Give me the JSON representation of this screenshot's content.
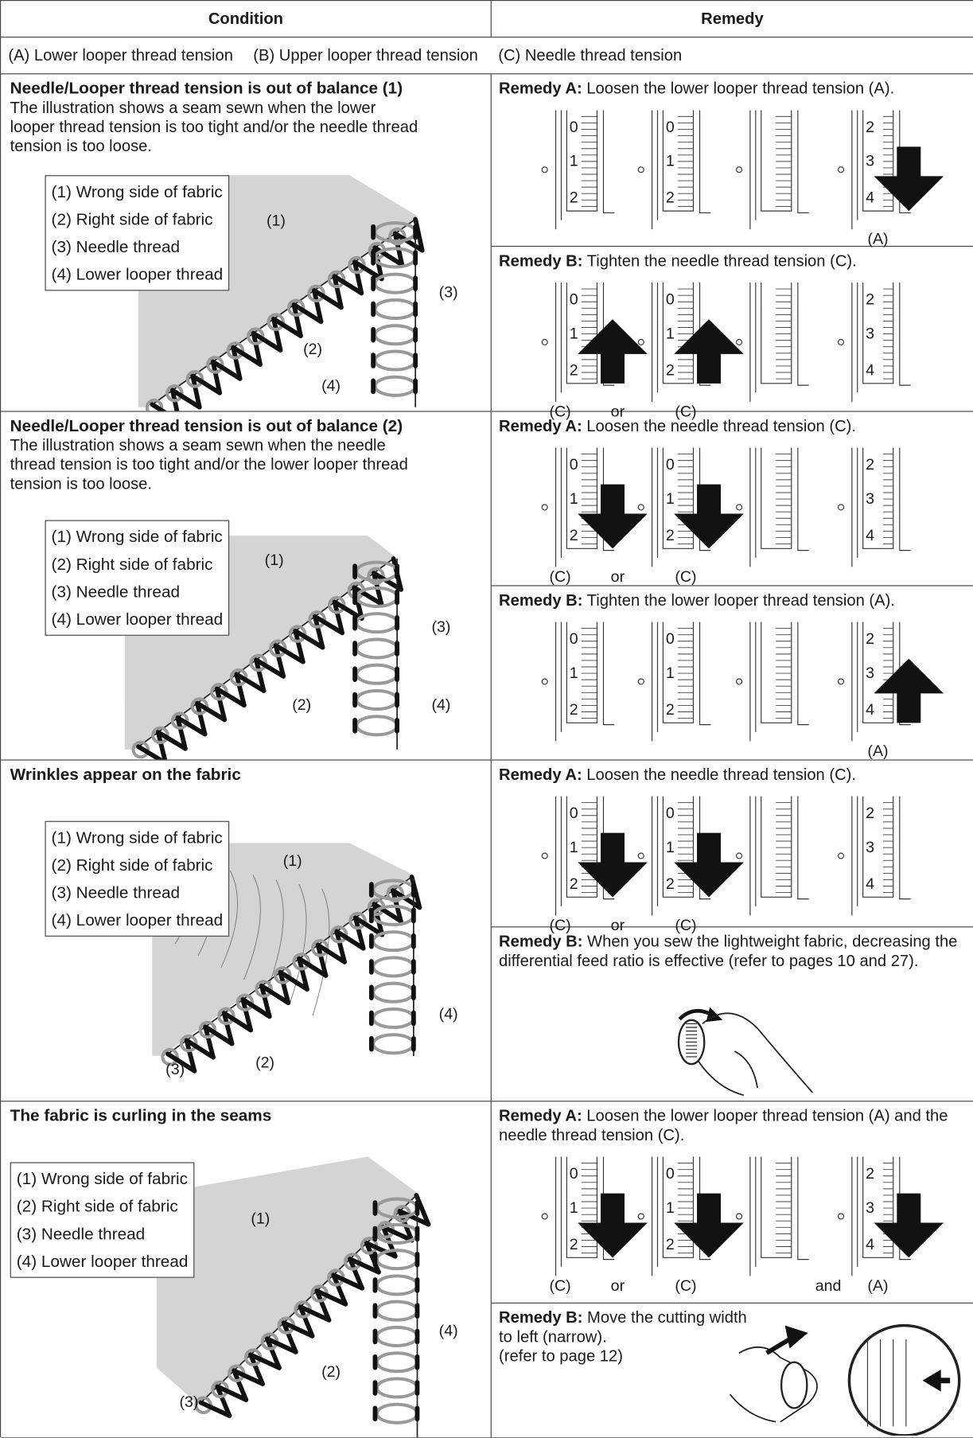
{
  "header": {
    "condition": "Condition",
    "remedy": "Remedy"
  },
  "legend": [
    "(A) Lower looper thread tension",
    "(B) Upper looper thread tension",
    "(C) Needle thread tension"
  ],
  "dial_numbers": {
    "low": [
      "0",
      "1",
      "2"
    ],
    "high": [
      "2",
      "3",
      "4"
    ]
  },
  "rows": [
    {
      "title": "Needle/Looper thread tension is out of balance (1)",
      "description": "The illustration shows a seam sewn when the lower looper thread tension is too tight and/or the needle thread tension is too loose.",
      "parts": [
        "(1) Wrong side of fabric",
        "(2) Right side of fabric",
        "(3) Needle thread",
        "(4) Lower looper thread"
      ],
      "figure_labels": [
        "(1)",
        "(2)",
        "(3)",
        "(4)"
      ],
      "remedies": [
        {
          "label": "Remedy A:",
          "text": "Loosen the lower looper thread tension (A).",
          "captions": [
            "(A)"
          ]
        },
        {
          "label": "Remedy B:",
          "text": "Tighten the needle thread tension (C).",
          "captions": [
            "(C)",
            "or",
            "(C)"
          ]
        }
      ]
    },
    {
      "title": "Needle/Looper thread tension is out of balance (2)",
      "description": "The illustration shows a seam sewn when the needle thread tension is too tight and/or the lower looper thread tension is too loose.",
      "parts": [
        "(1) Wrong side of fabric",
        "(2) Right side of fabric",
        "(3) Needle thread",
        "(4) Lower looper thread"
      ],
      "figure_labels": [
        "(1)",
        "(2)",
        "(3)",
        "(4)"
      ],
      "remedies": [
        {
          "label": "Remedy A:",
          "text": "Loosen the needle thread tension (C).",
          "captions": [
            "(C)",
            "or",
            "(C)"
          ]
        },
        {
          "label": "Remedy B:",
          "text": "Tighten the lower looper thread tension (A).",
          "captions": [
            "(A)"
          ]
        }
      ]
    },
    {
      "title": "Wrinkles appear on the fabric",
      "parts": [
        "(1) Wrong side of fabric",
        "(2) Right side of fabric",
        "(3) Needle thread",
        "(4) Lower looper thread"
      ],
      "figure_labels": [
        "(1)",
        "(2)",
        "(3)",
        "(4)"
      ],
      "remedies": [
        {
          "label": "Remedy A:",
          "text": "Loosen the needle thread tension (C).",
          "captions": [
            "(C)",
            "or",
            "(C)"
          ]
        },
        {
          "label": "Remedy B:",
          "text": "When you sew the lightweight fabric, decreasing the differential feed ratio is effective (refer to pages 10 and 27)."
        }
      ]
    },
    {
      "title": "The fabric is curling in the seams",
      "parts": [
        "(1) Wrong side of fabric",
        "(2) Right side of fabric",
        "(3) Needle thread",
        "(4) Lower looper thread"
      ],
      "figure_labels": [
        "(1)",
        "(2)",
        "(3)",
        "(4)"
      ],
      "remedies": [
        {
          "label": "Remedy A:",
          "text": "Loosen the lower looper thread tension (A) and the needle thread tension (C).",
          "captions": [
            "(C)",
            "or",
            "(C)",
            "and",
            "(A)"
          ]
        },
        {
          "label": "Remedy B:",
          "text": "Move the cutting width to left (narrow).",
          "note": "(refer to page 12)"
        }
      ]
    }
  ]
}
